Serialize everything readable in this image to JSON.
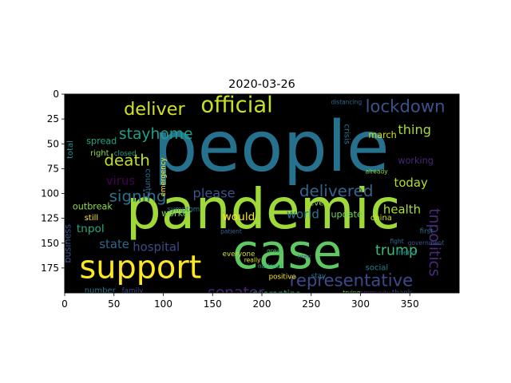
{
  "chart_data": {
    "type": "image",
    "title": "2020-03-26",
    "xlabel": "",
    "ylabel": "",
    "xlim": [
      0,
      400
    ],
    "ylim": [
      200,
      0
    ],
    "x_ticks": [
      0,
      50,
      100,
      150,
      200,
      250,
      300,
      350
    ],
    "y_ticks": [
      0,
      25,
      50,
      75,
      100,
      125,
      150,
      175
    ],
    "background": "#000000",
    "words": [
      {
        "text": "people",
        "x": 90,
        "y": 77,
        "size": 70,
        "color": "#26728e",
        "rot": 0
      },
      {
        "text": "pandemic",
        "x": 62,
        "y": 135,
        "size": 56,
        "color": "#a0da39",
        "rot": 0
      },
      {
        "text": "case",
        "x": 170,
        "y": 175,
        "size": 48,
        "color": "#5ec962",
        "rot": 0
      },
      {
        "text": "support",
        "x": 15,
        "y": 185,
        "size": 32,
        "color": "#fde725",
        "rot": 0
      },
      {
        "text": "official",
        "x": 138,
        "y": 18,
        "size": 22,
        "color": "#c8e020",
        "rot": 0
      },
      {
        "text": "deliver",
        "x": 60,
        "y": 21,
        "size": 18,
        "color": "#d2e21b",
        "rot": 0
      },
      {
        "text": "lockdown",
        "x": 305,
        "y": 18,
        "size": 17,
        "color": "#3b528b",
        "rot": 0
      },
      {
        "text": "representative",
        "x": 228,
        "y": 193,
        "size": 17,
        "color": "#3e4989",
        "rot": 0
      },
      {
        "text": "delivered",
        "x": 238,
        "y": 103,
        "size": 16,
        "color": "#32658e",
        "rot": 0
      },
      {
        "text": "death",
        "x": 40,
        "y": 72,
        "size": 16,
        "color": "#c2df23",
        "rot": 0
      },
      {
        "text": "stayhome",
        "x": 55,
        "y": 45,
        "size": 15,
        "color": "#1f9e89",
        "rot": 0
      },
      {
        "text": "signing",
        "x": 45,
        "y": 108,
        "size": 16,
        "color": "#2d708e",
        "rot": 0
      },
      {
        "text": "senator",
        "x": 145,
        "y": 205,
        "size": 15,
        "color": "#482878",
        "rot": 0
      },
      {
        "text": "tnpolitics",
        "x": 370,
        "y": 115,
        "size": 15,
        "color": "#472d7b",
        "rot": 90
      },
      {
        "text": "trump",
        "x": 315,
        "y": 162,
        "size": 14,
        "color": "#3dbc74",
        "rot": 0
      },
      {
        "text": "please",
        "x": 130,
        "y": 104,
        "size": 13,
        "color": "#3b528b",
        "rot": 0
      },
      {
        "text": "hospital",
        "x": 69,
        "y": 158,
        "size": 12,
        "color": "#3e4a89",
        "rot": 0
      },
      {
        "text": "world",
        "x": 225,
        "y": 125,
        "size": 12,
        "color": "#2a788e",
        "rot": 0
      },
      {
        "text": "today",
        "x": 334,
        "y": 93,
        "size": 12,
        "color": "#b5de2b",
        "rot": 0
      },
      {
        "text": "thing",
        "x": 338,
        "y": 40,
        "size": 13,
        "color": "#a2da37",
        "rot": 0
      },
      {
        "text": "health",
        "x": 323,
        "y": 120,
        "size": 12,
        "color": "#addc30",
        "rot": 0
      },
      {
        "text": "virus",
        "x": 42,
        "y": 91,
        "size": 12,
        "color": "#440154",
        "rot": 0
      },
      {
        "text": "would",
        "x": 160,
        "y": 127,
        "size": 11,
        "color": "#fde725",
        "rot": 0
      },
      {
        "text": "state",
        "x": 35,
        "y": 155,
        "size": 12,
        "color": "#31688e",
        "rot": 0
      },
      {
        "text": "tnpol",
        "x": 12,
        "y": 139,
        "size": 11,
        "color": "#22a884",
        "rot": 0
      },
      {
        "text": "spread",
        "x": 22,
        "y": 50,
        "size": 9,
        "color": "#20a486",
        "rot": 0
      },
      {
        "text": "quarantine",
        "x": 190,
        "y": 204,
        "size": 9,
        "color": "#35b779",
        "rot": 0
      },
      {
        "text": "outbreak",
        "x": 8,
        "y": 116,
        "size": 9,
        "color": "#90d743",
        "rot": 0
      },
      {
        "text": "worker",
        "x": 98,
        "y": 123,
        "size": 9,
        "color": "#75d054",
        "rot": 0
      },
      {
        "text": "update",
        "x": 270,
        "y": 124,
        "size": 9,
        "color": "#6ece58",
        "rot": 0
      },
      {
        "text": "china",
        "x": 310,
        "y": 127,
        "size": 8,
        "color": "#cfe11c",
        "rot": 0
      },
      {
        "text": "social",
        "x": 305,
        "y": 177,
        "size": 8,
        "color": "#25848e",
        "rot": 0
      },
      {
        "text": "march",
        "x": 308,
        "y": 44,
        "size": 9,
        "color": "#d8e219",
        "rot": 0
      },
      {
        "text": "crisis",
        "x": 284,
        "y": 30,
        "size": 8,
        "color": "#2c728e",
        "rot": 90
      },
      {
        "text": "business",
        "x": 6,
        "y": 170,
        "size": 9,
        "color": "#3b528b",
        "rot": -90
      },
      {
        "text": "number",
        "x": 20,
        "y": 200,
        "size": 8,
        "color": "#2a788e",
        "rot": 0
      },
      {
        "text": "family",
        "x": 58,
        "y": 200,
        "size": 7,
        "color": "#3f4788",
        "rot": 0
      },
      {
        "text": "still",
        "x": 20,
        "y": 127,
        "size": 8,
        "color": "#fde725",
        "rot": 0
      },
      {
        "text": "right",
        "x": 26,
        "y": 62,
        "size": 8,
        "color": "#93d741",
        "rot": 0
      },
      {
        "text": "closed",
        "x": 50,
        "y": 62,
        "size": 7,
        "color": "#1fa088",
        "rot": 0
      },
      {
        "text": "country",
        "x": 82,
        "y": 75,
        "size": 8,
        "color": "#2f6c8e",
        "rot": 90
      },
      {
        "text": "emergency",
        "x": 102,
        "y": 103,
        "size": 7,
        "color": "#fde725",
        "rot": -90
      },
      {
        "text": "symptom",
        "x": 104,
        "y": 118,
        "size": 7,
        "color": "#2a788e",
        "rot": 0
      },
      {
        "text": "every",
        "x": 248,
        "y": 112,
        "size": 8,
        "color": "#9fda3a",
        "rot": 0
      },
      {
        "text": "positive",
        "x": 207,
        "y": 186,
        "size": 7,
        "color": "#fde725",
        "rot": 0
      },
      {
        "text": "working",
        "x": 338,
        "y": 70,
        "size": 9,
        "color": "#482878",
        "rot": 0
      },
      {
        "text": "friend",
        "x": 336,
        "y": 162,
        "size": 7,
        "color": "#26828e",
        "rot": 0
      },
      {
        "text": "thank",
        "x": 332,
        "y": 202,
        "size": 7,
        "color": "#3e4a89",
        "rot": 0
      },
      {
        "text": "community",
        "x": 296,
        "y": 202,
        "size": 6,
        "color": "#482878",
        "rot": 0
      },
      {
        "text": "everyone",
        "x": 160,
        "y": 163,
        "size": 7,
        "color": "#cde11d",
        "rot": 0
      },
      {
        "text": "total",
        "x": 8,
        "y": 65,
        "size": 8,
        "color": "#21908d",
        "rot": -90
      },
      {
        "text": "national",
        "x": 196,
        "y": 175,
        "size": 6,
        "color": "#29af7f",
        "rot": 0
      },
      {
        "text": "really",
        "x": 182,
        "y": 169,
        "size": 6,
        "color": "#d8e219",
        "rot": 0
      },
      {
        "text": "trying",
        "x": 282,
        "y": 202,
        "size": 6,
        "color": "#7ad151",
        "rot": 0
      },
      {
        "text": "distancing",
        "x": 270,
        "y": 10,
        "size": 6,
        "color": "#31678e",
        "rot": 0
      },
      {
        "text": "first",
        "x": 360,
        "y": 140,
        "size": 7,
        "color": "#2c738e",
        "rot": 0
      },
      {
        "text": "government",
        "x": 348,
        "y": 152,
        "size": 6,
        "color": "#3b528b",
        "rot": 0
      },
      {
        "text": "patient",
        "x": 158,
        "y": 140,
        "size": 6,
        "color": "#34618d",
        "rot": 0
      },
      {
        "text": "fight",
        "x": 330,
        "y": 150,
        "size": 6,
        "color": "#2e6f8e",
        "rot": 0
      },
      {
        "text": "great",
        "x": 205,
        "y": 160,
        "size": 6,
        "color": "#4ac16d",
        "rot": 0
      },
      {
        "text": "latest",
        "x": 236,
        "y": 165,
        "size": 5,
        "color": "#3e4c8a",
        "rot": 0
      },
      {
        "text": "already",
        "x": 305,
        "y": 80,
        "size": 6,
        "color": "#8ed645",
        "rot": 0
      },
      {
        "text": "stay",
        "x": 250,
        "y": 185,
        "size": 7,
        "color": "#2a778e",
        "rot": 0
      }
    ]
  }
}
